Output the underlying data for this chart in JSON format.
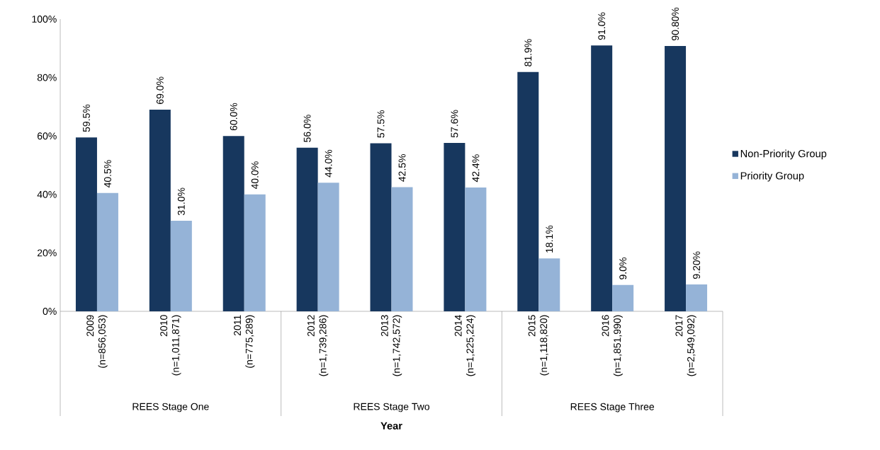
{
  "chart_data": {
    "type": "bar",
    "xlabel": "Year",
    "categories": [
      "2009 (n=856,053)",
      "2010 (n=1,011,871)",
      "2011 (n=775,289)",
      "2012 (n=1,739,286)",
      "2013 (n=1,742,572)",
      "2014 (n=1,225,224)",
      "2015 (n=1,118,820)",
      "2016 (n=1,851,990)",
      "2017 (n=2,549,092)"
    ],
    "series": [
      {
        "name": "Non-Priority Group",
        "color": "#17375e",
        "values": [
          59.5,
          69.0,
          60.0,
          56.0,
          57.5,
          57.6,
          81.9,
          91.0,
          90.8
        ],
        "value_labels": [
          "59.5%",
          "69.0%",
          "60.0%",
          "56.0%",
          "57.5%",
          "57.6%",
          "81.9%",
          "91.0%",
          "90.80%"
        ]
      },
      {
        "name": "Priority Group",
        "color": "#95b3d7",
        "values": [
          40.5,
          31.0,
          40.0,
          44.0,
          42.5,
          42.4,
          18.1,
          9.0,
          9.2
        ],
        "value_labels": [
          "40.5%",
          "31.0%",
          "40.0%",
          "44.0%",
          "42.5%",
          "42.4%",
          "18.1%",
          "9.0%",
          "9.20%"
        ]
      }
    ],
    "annotations": [
      "REES Stage One",
      "REES Stage Two",
      "REES Stage Three"
    ],
    "ylim": [
      0,
      100
    ],
    "yticks": [
      {
        "value": 0,
        "label": "0%"
      },
      {
        "value": 20,
        "label": "20%"
      },
      {
        "value": 40,
        "label": "40%"
      },
      {
        "value": 60,
        "label": "60%"
      },
      {
        "value": 80,
        "label": "80%"
      },
      {
        "value": 100,
        "label": "100%"
      }
    ],
    "legend": "right",
    "grid": false
  }
}
